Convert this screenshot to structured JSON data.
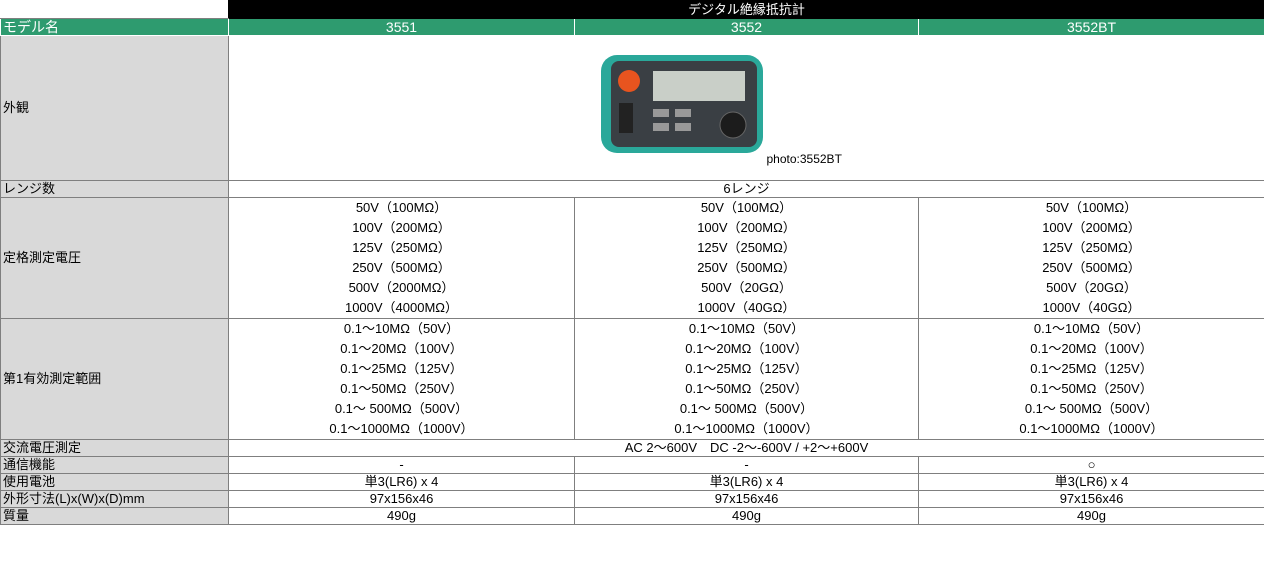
{
  "header": {
    "title": "デジタル絶縁抵抗計"
  },
  "table": {
    "columns": [
      "モデル名",
      "3551",
      "3552",
      "3552BT"
    ],
    "rows": [
      {
        "label": "外観",
        "caption": "photo:3552BT"
      },
      {
        "label": "レンジ数",
        "value": "6レンジ"
      },
      {
        "label": "定格測定電圧",
        "cells": [
          [
            "50V（100MΩ）",
            "100V（200MΩ）",
            "125V（250MΩ）",
            "250V（500MΩ）",
            "500V（2000MΩ）",
            "1000V（4000MΩ）"
          ],
          [
            "50V（100MΩ）",
            "100V（200MΩ）",
            "125V（250MΩ）",
            "250V（500MΩ）",
            "500V（20GΩ）",
            "1000V（40GΩ）"
          ],
          [
            "50V（100MΩ）",
            "100V（200MΩ）",
            "125V（250MΩ）",
            "250V（500MΩ）",
            "500V（20GΩ）",
            "1000V（40GΩ）"
          ]
        ]
      },
      {
        "label": "第1有効測定範囲",
        "cells": [
          [
            "0.1～10MΩ（50V）",
            "0.1～20MΩ（100V）",
            "0.1～25MΩ（125V）",
            "0.1～50MΩ（250V）",
            "0.1～ 500MΩ（500V）",
            "0.1～1000MΩ（1000V）"
          ],
          [
            "0.1～10MΩ（50V）",
            "0.1～20MΩ（100V）",
            "0.1～25MΩ（125V）",
            "0.1～50MΩ（250V）",
            "0.1～ 500MΩ（500V）",
            "0.1～1000MΩ（1000V）"
          ],
          [
            "0.1～10MΩ（50V）",
            "0.1～20MΩ（100V）",
            "0.1～25MΩ（125V）",
            "0.1～50MΩ（250V）",
            "0.1～ 500MΩ（500V）",
            "0.1～1000MΩ（1000V）"
          ]
        ]
      },
      {
        "label": "交流電圧測定",
        "value": "AC 2～600V　DC -2～-600V / +2～+600V"
      },
      {
        "label": "通信機能",
        "cells": [
          "-",
          "-",
          "○"
        ]
      },
      {
        "label": "使用電池",
        "cells": [
          "単3(LR6) x 4",
          "単3(LR6) x 4",
          "単3(LR6) x 4"
        ]
      },
      {
        "label": "外形寸法(L)x(W)x(D)mm",
        "cells": [
          "97x156x46",
          "97x156x46",
          "97x156x46"
        ]
      },
      {
        "label": "質量",
        "cells": [
          "490g",
          "490g",
          "490g"
        ]
      }
    ]
  }
}
